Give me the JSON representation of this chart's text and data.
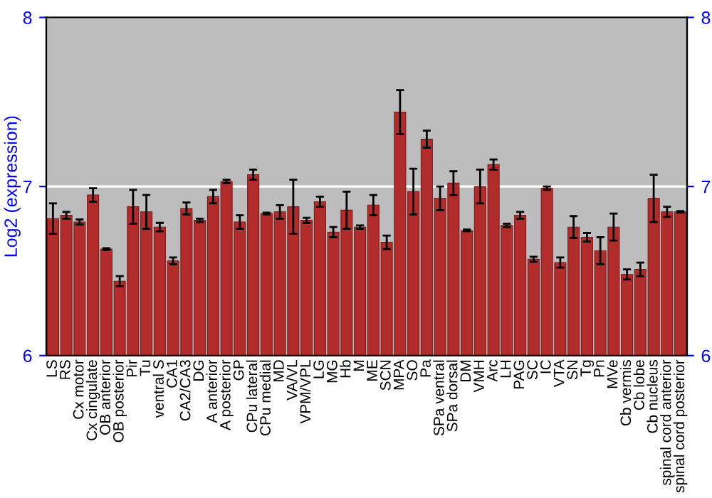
{
  "chart_data": {
    "type": "bar",
    "ylabel": "Log2 (expression)",
    "categories": [
      "LS",
      "RS",
      "Cx motor",
      "Cx cingulate",
      "OB anterior",
      "OB posterior",
      "Pir",
      "Tu",
      "ventral S",
      "CA1",
      "CA2/CA3",
      "DG",
      "A anterior",
      "A posterior",
      "GP",
      "CPu lateral",
      "CPu medial",
      "MD",
      "VA/VL",
      "VPM/VPL",
      "LG",
      "MG",
      "Hb",
      "M",
      "ME",
      "SCN",
      "MPA",
      "SO",
      "Pa",
      "SPa ventral",
      "SPa dorsal",
      "DM",
      "VMH",
      "Arc",
      "LH",
      "PAG",
      "SC",
      "IC",
      "VTA",
      "SN",
      "Tg",
      "Pn",
      "MVe",
      "Cb vermis",
      "Cb lobe",
      "Cb nucleus",
      "spinal cord anterior",
      "spinal cord posterior"
    ],
    "values": [
      6.81,
      6.83,
      6.79,
      6.95,
      6.63,
      6.44,
      6.88,
      6.85,
      6.76,
      6.56,
      6.87,
      6.8,
      6.94,
      7.03,
      6.79,
      7.07,
      6.84,
      6.85,
      6.88,
      6.8,
      6.91,
      6.73,
      6.86,
      6.76,
      6.89,
      6.67,
      7.44,
      6.97,
      7.28,
      6.93,
      7.02,
      6.74,
      7.0,
      7.13,
      6.77,
      6.83,
      6.57,
      6.99,
      6.55,
      6.76,
      6.7,
      6.62,
      6.76,
      6.48,
      6.51,
      6.93,
      6.85,
      6.85
    ],
    "errors": [
      0.09,
      0.02,
      0.015,
      0.04,
      0.005,
      0.03,
      0.1,
      0.1,
      0.025,
      0.02,
      0.035,
      0.01,
      0.04,
      0.01,
      0.04,
      0.03,
      0.005,
      0.04,
      0.16,
      0.015,
      0.03,
      0.03,
      0.11,
      0.01,
      0.06,
      0.04,
      0.13,
      0.135,
      0.05,
      0.07,
      0.07,
      0.005,
      0.1,
      0.03,
      0.01,
      0.02,
      0.015,
      0.01,
      0.03,
      0.065,
      0.025,
      0.08,
      0.08,
      0.03,
      0.04,
      0.14,
      0.03,
      0.005
    ],
    "color": "#b22c2c",
    "ylim": [
      6,
      8
    ],
    "yticks": [
      6,
      7,
      8
    ],
    "y2lim": [
      6,
      8
    ],
    "y2ticks": [
      6,
      7,
      8
    ],
    "grid": "y"
  }
}
